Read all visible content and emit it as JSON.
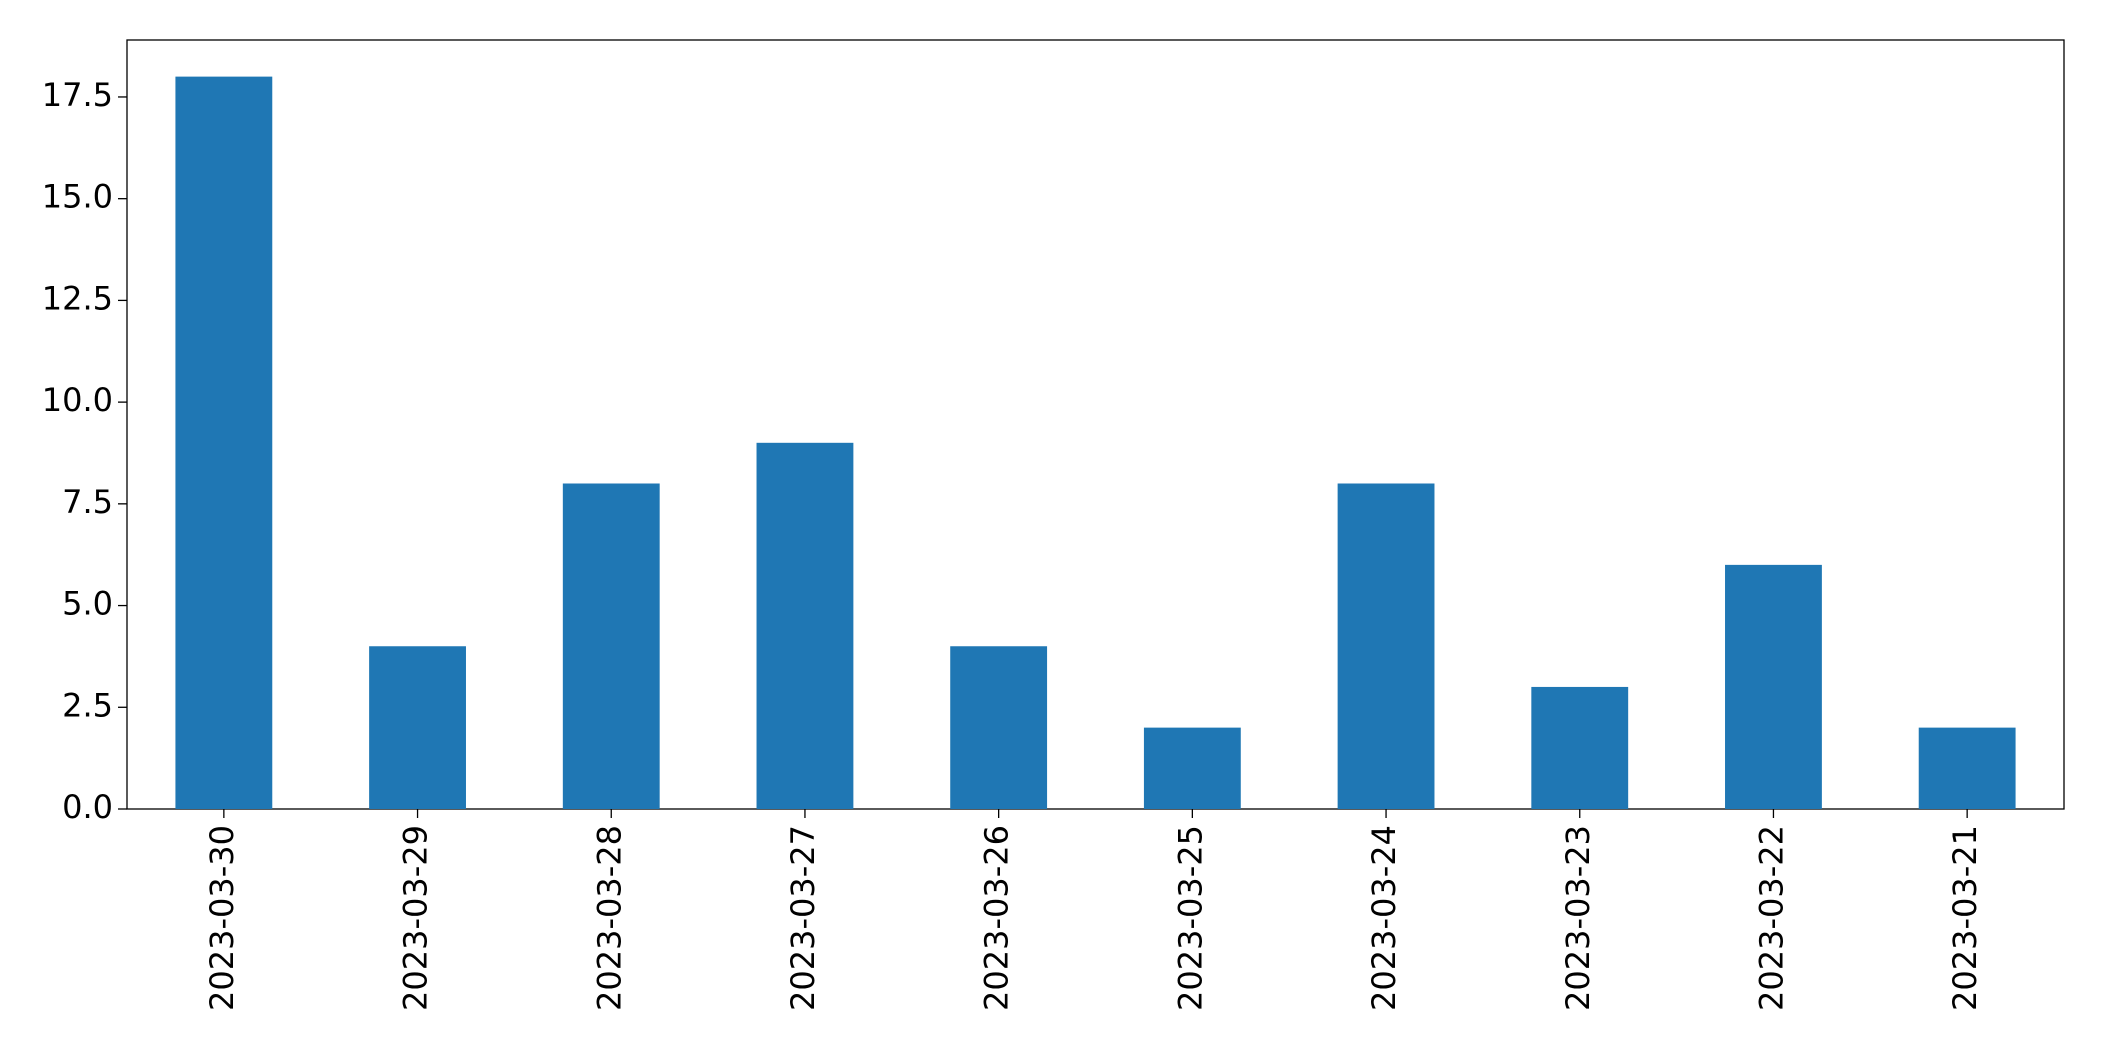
{
  "chart_data": {
    "type": "bar",
    "categories": [
      "2023-03-30",
      "2023-03-29",
      "2023-03-28",
      "2023-03-27",
      "2023-03-26",
      "2023-03-25",
      "2023-03-24",
      "2023-03-23",
      "2023-03-22",
      "2023-03-21"
    ],
    "values": [
      18,
      4,
      8,
      9,
      4,
      2,
      8,
      3,
      6,
      2
    ],
    "color": "#1f77b4",
    "ylim": [
      0,
      18.9
    ],
    "yticks": [
      {
        "value": 0,
        "label": "0.0"
      },
      2.5,
      {
        "value": 5,
        "label": "5.0"
      },
      7.5,
      {
        "value": 10,
        "label": "10.0"
      },
      12.5,
      {
        "value": 15,
        "label": "15.0"
      },
      17.5
    ],
    "grid": false
  }
}
